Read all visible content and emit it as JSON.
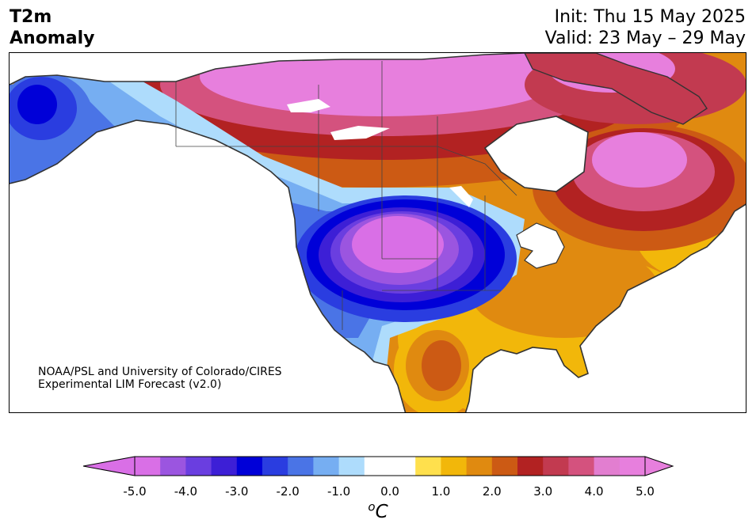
{
  "header": {
    "title_line1": "T2m",
    "title_line2": "Anomaly",
    "init_text": "Init: Thu 15 May 2025",
    "valid_text": "Valid: 23 May – 29 May"
  },
  "credit": {
    "line1": "NOAA/PSL and University of Colorado/CIRES",
    "line2": "Experimental LIM Forecast (v2.0)"
  },
  "colorbar": {
    "units": "oC",
    "ticks": [
      "-5.0",
      "-4.0",
      "-3.0",
      "-2.0",
      "-1.0",
      "0.0",
      "1.0",
      "2.0",
      "3.0",
      "4.0",
      "5.0"
    ],
    "colors": [
      "#d96fe6",
      "#9b55e0",
      "#6a3ee0",
      "#3d1fd6",
      "#0000d8",
      "#2a3de0",
      "#4a74e6",
      "#76aef2",
      "#aedcfc",
      "#ffffff",
      "#ffffff",
      "#ffe04d",
      "#f2b70a",
      "#e08a10",
      "#cc5a14",
      "#b22222",
      "#c23a50",
      "#d4527e",
      "#e27ed0",
      "#e77fdd"
    ],
    "under_color": "#d96fe6",
    "over_color": "#e77fdd"
  },
  "icons": {
    "map": "north-america-anomaly-map"
  }
}
